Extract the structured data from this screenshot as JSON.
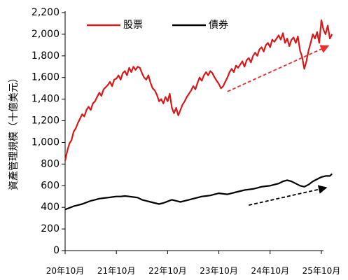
{
  "chart_data": {
    "type": "line",
    "title": "",
    "xlabel": "",
    "ylabel": "資產管理規模（十億美元）",
    "ylim": [
      0,
      2200
    ],
    "yticks": [
      0,
      200,
      400,
      600,
      800,
      1000,
      1200,
      1400,
      1600,
      1800,
      2000,
      2200
    ],
    "ytick_labels": [
      "0",
      "200",
      "400",
      "600",
      "800",
      "1,000",
      "1,200",
      "1,400",
      "1,600",
      "1,800",
      "2,000",
      "2,200"
    ],
    "x_categories": [
      "20年10月",
      "21年10月",
      "22年10月",
      "23年10月",
      "24年10月",
      "25年10月"
    ],
    "x_unit": "months since 20年10月",
    "xlim": [
      0,
      60.5
    ],
    "grid": false,
    "legend_position": "top",
    "series": [
      {
        "name": "股票",
        "color": "#d7191c",
        "points": [
          [
            0,
            830
          ],
          [
            0.5,
            920
          ],
          [
            1,
            990
          ],
          [
            1.5,
            1020
          ],
          [
            2,
            1100
          ],
          [
            2.5,
            1130
          ],
          [
            3,
            1180
          ],
          [
            3.5,
            1220
          ],
          [
            4,
            1260
          ],
          [
            4.5,
            1240
          ],
          [
            5,
            1300
          ],
          [
            5.5,
            1330
          ],
          [
            6,
            1300
          ],
          [
            6.5,
            1360
          ],
          [
            7,
            1380
          ],
          [
            7.5,
            1420
          ],
          [
            8,
            1460
          ],
          [
            8.5,
            1430
          ],
          [
            9,
            1490
          ],
          [
            9.5,
            1510
          ],
          [
            10,
            1530
          ],
          [
            10.5,
            1560
          ],
          [
            11,
            1520
          ],
          [
            11.5,
            1580
          ],
          [
            12,
            1590
          ],
          [
            12.5,
            1620
          ],
          [
            13,
            1580
          ],
          [
            13.5,
            1640
          ],
          [
            14,
            1660
          ],
          [
            14.5,
            1620
          ],
          [
            15,
            1690
          ],
          [
            15.5,
            1650
          ],
          [
            16,
            1700
          ],
          [
            16.5,
            1670
          ],
          [
            17,
            1700
          ],
          [
            17.5,
            1690
          ],
          [
            18,
            1640
          ],
          [
            18.5,
            1600
          ],
          [
            19,
            1580
          ],
          [
            19.5,
            1620
          ],
          [
            20,
            1550
          ],
          [
            20.5,
            1500
          ],
          [
            21,
            1480
          ],
          [
            21.5,
            1440
          ],
          [
            22,
            1380
          ],
          [
            22.5,
            1400
          ],
          [
            23,
            1360
          ],
          [
            23.5,
            1420
          ],
          [
            24,
            1380
          ],
          [
            24.5,
            1450
          ],
          [
            25,
            1320
          ],
          [
            25.5,
            1270
          ],
          [
            26,
            1320
          ],
          [
            26.5,
            1250
          ],
          [
            27,
            1300
          ],
          [
            27.5,
            1350
          ],
          [
            28,
            1380
          ],
          [
            28.5,
            1420
          ],
          [
            29,
            1450
          ],
          [
            29.5,
            1480
          ],
          [
            30,
            1520
          ],
          [
            30.5,
            1490
          ],
          [
            31,
            1550
          ],
          [
            31.5,
            1600
          ],
          [
            32,
            1570
          ],
          [
            32.5,
            1620
          ],
          [
            33,
            1650
          ],
          [
            33.5,
            1620
          ],
          [
            34,
            1660
          ],
          [
            34.5,
            1640
          ],
          [
            35,
            1600
          ],
          [
            35.5,
            1570
          ],
          [
            36,
            1540
          ],
          [
            36.5,
            1500
          ],
          [
            37,
            1520
          ],
          [
            37.5,
            1560
          ],
          [
            38,
            1600
          ],
          [
            38.5,
            1650
          ],
          [
            39,
            1680
          ],
          [
            39.5,
            1650
          ],
          [
            40,
            1710
          ],
          [
            40.5,
            1690
          ],
          [
            41,
            1720
          ],
          [
            41.5,
            1750
          ],
          [
            42,
            1700
          ],
          [
            42.5,
            1760
          ],
          [
            43,
            1780
          ],
          [
            43.5,
            1740
          ],
          [
            44,
            1800
          ],
          [
            44.5,
            1830
          ],
          [
            45,
            1800
          ],
          [
            45.5,
            1860
          ],
          [
            46,
            1880
          ],
          [
            46.5,
            1840
          ],
          [
            47,
            1900
          ],
          [
            47.5,
            1920
          ],
          [
            48,
            1880
          ],
          [
            48.5,
            1950
          ],
          [
            49,
            1930
          ],
          [
            49.5,
            1960
          ],
          [
            50,
            1990
          ],
          [
            50.5,
            1950
          ],
          [
            51,
            2010
          ],
          [
            51.5,
            1920
          ],
          [
            52,
            1960
          ],
          [
            52.5,
            1890
          ],
          [
            53,
            1950
          ],
          [
            53.5,
            1970
          ],
          [
            54,
            1920
          ],
          [
            54.5,
            1980
          ],
          [
            55,
            1850
          ],
          [
            55.5,
            1790
          ],
          [
            56,
            1680
          ],
          [
            56.5,
            1750
          ],
          [
            57,
            1850
          ],
          [
            57.5,
            1920
          ],
          [
            58,
            2000
          ],
          [
            58.5,
            1960
          ],
          [
            59,
            2020
          ],
          [
            59.5,
            1920
          ],
          [
            60,
            2130
          ],
          [
            60.5,
            2040
          ],
          [
            61,
            2000
          ],
          [
            61.5,
            2080
          ],
          [
            62,
            1960
          ],
          [
            62.5,
            2000
          ]
        ]
      },
      {
        "name": "債券",
        "color": "#000000",
        "points": [
          [
            0,
            380
          ],
          [
            1,
            395
          ],
          [
            2,
            410
          ],
          [
            3,
            420
          ],
          [
            4,
            430
          ],
          [
            5,
            445
          ],
          [
            6,
            460
          ],
          [
            7,
            470
          ],
          [
            8,
            480
          ],
          [
            9,
            485
          ],
          [
            10,
            490
          ],
          [
            11,
            495
          ],
          [
            12,
            500
          ],
          [
            13,
            500
          ],
          [
            14,
            505
          ],
          [
            15,
            500
          ],
          [
            16,
            495
          ],
          [
            17,
            490
          ],
          [
            18,
            470
          ],
          [
            19,
            460
          ],
          [
            20,
            450
          ],
          [
            21,
            440
          ],
          [
            22,
            430
          ],
          [
            23,
            440
          ],
          [
            24,
            455
          ],
          [
            25,
            470
          ],
          [
            26,
            460
          ],
          [
            27,
            450
          ],
          [
            28,
            460
          ],
          [
            29,
            470
          ],
          [
            30,
            480
          ],
          [
            31,
            490
          ],
          [
            32,
            500
          ],
          [
            33,
            505
          ],
          [
            34,
            510
          ],
          [
            35,
            520
          ],
          [
            36,
            530
          ],
          [
            37,
            525
          ],
          [
            38,
            520
          ],
          [
            39,
            530
          ],
          [
            40,
            540
          ],
          [
            41,
            550
          ],
          [
            42,
            560
          ],
          [
            43,
            565
          ],
          [
            44,
            570
          ],
          [
            45,
            580
          ],
          [
            46,
            590
          ],
          [
            47,
            595
          ],
          [
            48,
            600
          ],
          [
            49,
            610
          ],
          [
            50,
            620
          ],
          [
            51,
            640
          ],
          [
            52,
            650
          ],
          [
            53,
            640
          ],
          [
            54,
            620
          ],
          [
            55,
            600
          ],
          [
            56,
            590
          ],
          [
            57,
            610
          ],
          [
            58,
            640
          ],
          [
            59,
            660
          ],
          [
            60,
            680
          ],
          [
            61,
            690
          ],
          [
            62,
            690
          ],
          [
            62.5,
            710
          ]
        ]
      }
    ],
    "trend_arrows": [
      {
        "series": "股票",
        "color": "#e8312e",
        "from": [
          38,
          1470
        ],
        "to": [
          61.5,
          1890
        ]
      },
      {
        "series": "債券",
        "color": "#000000",
        "from": [
          43,
          420
        ],
        "to": [
          61,
          580
        ]
      }
    ]
  }
}
